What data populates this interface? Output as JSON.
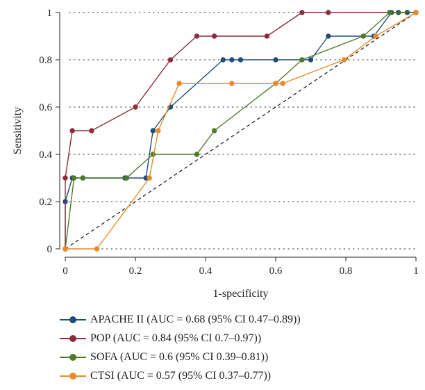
{
  "chart_data": {
    "type": "line",
    "xlabel": "1-specificity",
    "ylabel": "Sensitivity",
    "xlim": [
      0,
      1
    ],
    "ylim": [
      0,
      1
    ],
    "x_ticks": [
      "0",
      "0.2",
      "0.4",
      "0.6",
      "0.8",
      "1"
    ],
    "y_ticks": [
      "0",
      "0.2",
      "0.4",
      "0.6",
      "0.8",
      "1"
    ],
    "grid": "horizontal dotted",
    "reference_line": "diagonal dashed",
    "legend_position": "bottom",
    "series": [
      {
        "name": "APACHE II (AUC = 0.68 (95% CI 0.47–0.89))",
        "color": "#1f4e79",
        "x": [
          0,
          0,
          0.02,
          0.05,
          0.17,
          0.23,
          0.25,
          0.3,
          0.45,
          0.475,
          0.5,
          0.6,
          0.7,
          0.75,
          0.88,
          0.93,
          0.95,
          0.975,
          1
        ],
        "y": [
          0,
          0.2,
          0.3,
          0.3,
          0.3,
          0.3,
          0.5,
          0.6,
          0.8,
          0.8,
          0.8,
          0.8,
          0.8,
          0.9,
          0.9,
          1,
          1,
          1,
          1
        ]
      },
      {
        "name": "POP (AUC = 0.84 (95% CI 0.7–0.97))",
        "color": "#8b2e3c",
        "x": [
          0,
          0,
          0.02,
          0.075,
          0.2,
          0.3,
          0.375,
          0.425,
          0.575,
          0.675,
          0.75,
          0.925,
          1
        ],
        "y": [
          0,
          0.3,
          0.5,
          0.5,
          0.6,
          0.8,
          0.9,
          0.9,
          0.9,
          1,
          1,
          1,
          1
        ]
      },
      {
        "name": "SOFA (AUC = 0.6 (95% CI 0.39–0.81))",
        "color": "#4f7a28",
        "x": [
          0,
          0.025,
          0.05,
          0.175,
          0.25,
          0.375,
          0.425,
          0.6,
          0.675,
          0.85,
          0.925,
          1
        ],
        "y": [
          0,
          0.3,
          0.3,
          0.3,
          0.4,
          0.4,
          0.5,
          0.7,
          0.8,
          0.9,
          1,
          1
        ]
      },
      {
        "name": "CTSI (AUC = 0.57 (95% CI 0.37–0.77))",
        "color": "#e8892b",
        "x": [
          0,
          0.09,
          0.24,
          0.265,
          0.325,
          0.475,
          0.6,
          0.62,
          0.795,
          0.885,
          1
        ],
        "y": [
          0,
          0,
          0.3,
          0.5,
          0.7,
          0.7,
          0.7,
          0.7,
          0.8,
          0.9,
          1
        ]
      }
    ]
  }
}
